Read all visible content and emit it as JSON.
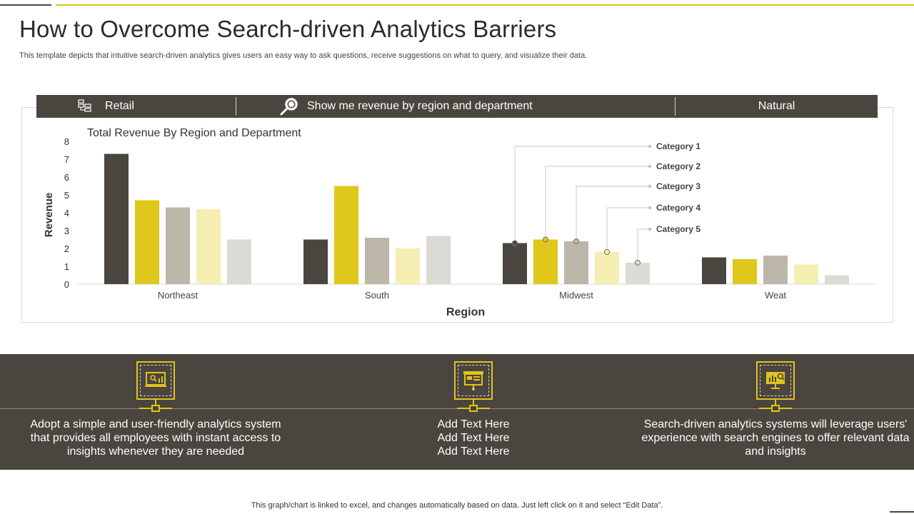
{
  "header": {
    "title": "How to Overcome Search-driven Analytics Barriers",
    "subtitle": "This template depicts that intuitive search-driven analytics gives users an easy way to ask questions, receive suggestions on what to query,  and visualize their data."
  },
  "search_bar": {
    "source_label": "Retail",
    "query_label": "Show me revenue by region and department",
    "mode_label": "Natural",
    "source_icon": "data-table-icon",
    "query_icon": "magnifier-icon"
  },
  "colors": {
    "dark": "#4a453e",
    "gold": "#e1c31b",
    "category_colors": [
      "#4a453e",
      "#dfc81b",
      "#bdb7aa",
      "#f5eeb2",
      "#dcdad5"
    ]
  },
  "chart_data": {
    "type": "bar",
    "title": "Total Revenue  By Region and Department",
    "xlabel": "Region",
    "ylabel": "Revenue",
    "ylim": [
      0,
      8
    ],
    "yticks": [
      "0",
      "1",
      "2",
      "3",
      "4",
      "5",
      "6",
      "7",
      "8"
    ],
    "categories": [
      "Northeast",
      "South",
      "Midwest",
      "Weat"
    ],
    "series": [
      {
        "name": "Category 1",
        "values": [
          7.3,
          2.5,
          2.3,
          1.5
        ]
      },
      {
        "name": "Category 2",
        "values": [
          4.7,
          5.5,
          2.5,
          1.4
        ]
      },
      {
        "name": "Category 3",
        "values": [
          4.3,
          2.6,
          2.4,
          1.6
        ]
      },
      {
        "name": "Category 4",
        "values": [
          4.2,
          2.0,
          1.8,
          1.1
        ]
      },
      {
        "name": "Category 5",
        "values": [
          2.5,
          2.7,
          1.2,
          0.5
        ]
      }
    ],
    "legend_placement": "callouts-midwest",
    "grid": false
  },
  "features": [
    {
      "icon": "presentation-analytics-icon",
      "text": "Adopt a simple and user-friendly analytics system that provides all employees with instant access to insights whenever  they are needed"
    },
    {
      "icon": "dashboard-board-icon",
      "text": "Add Text Here\nAdd Text Here\nAdd Text Here"
    },
    {
      "icon": "bar-chart-search-icon",
      "text": "Search-driven analytics systems will leverage users' experience with search engines to offer relevant data and insights"
    }
  ],
  "footer": {
    "note": "This graph/chart is linked to excel,  and changes automatically based on data. Just left click on it and select “Edit Data”."
  }
}
